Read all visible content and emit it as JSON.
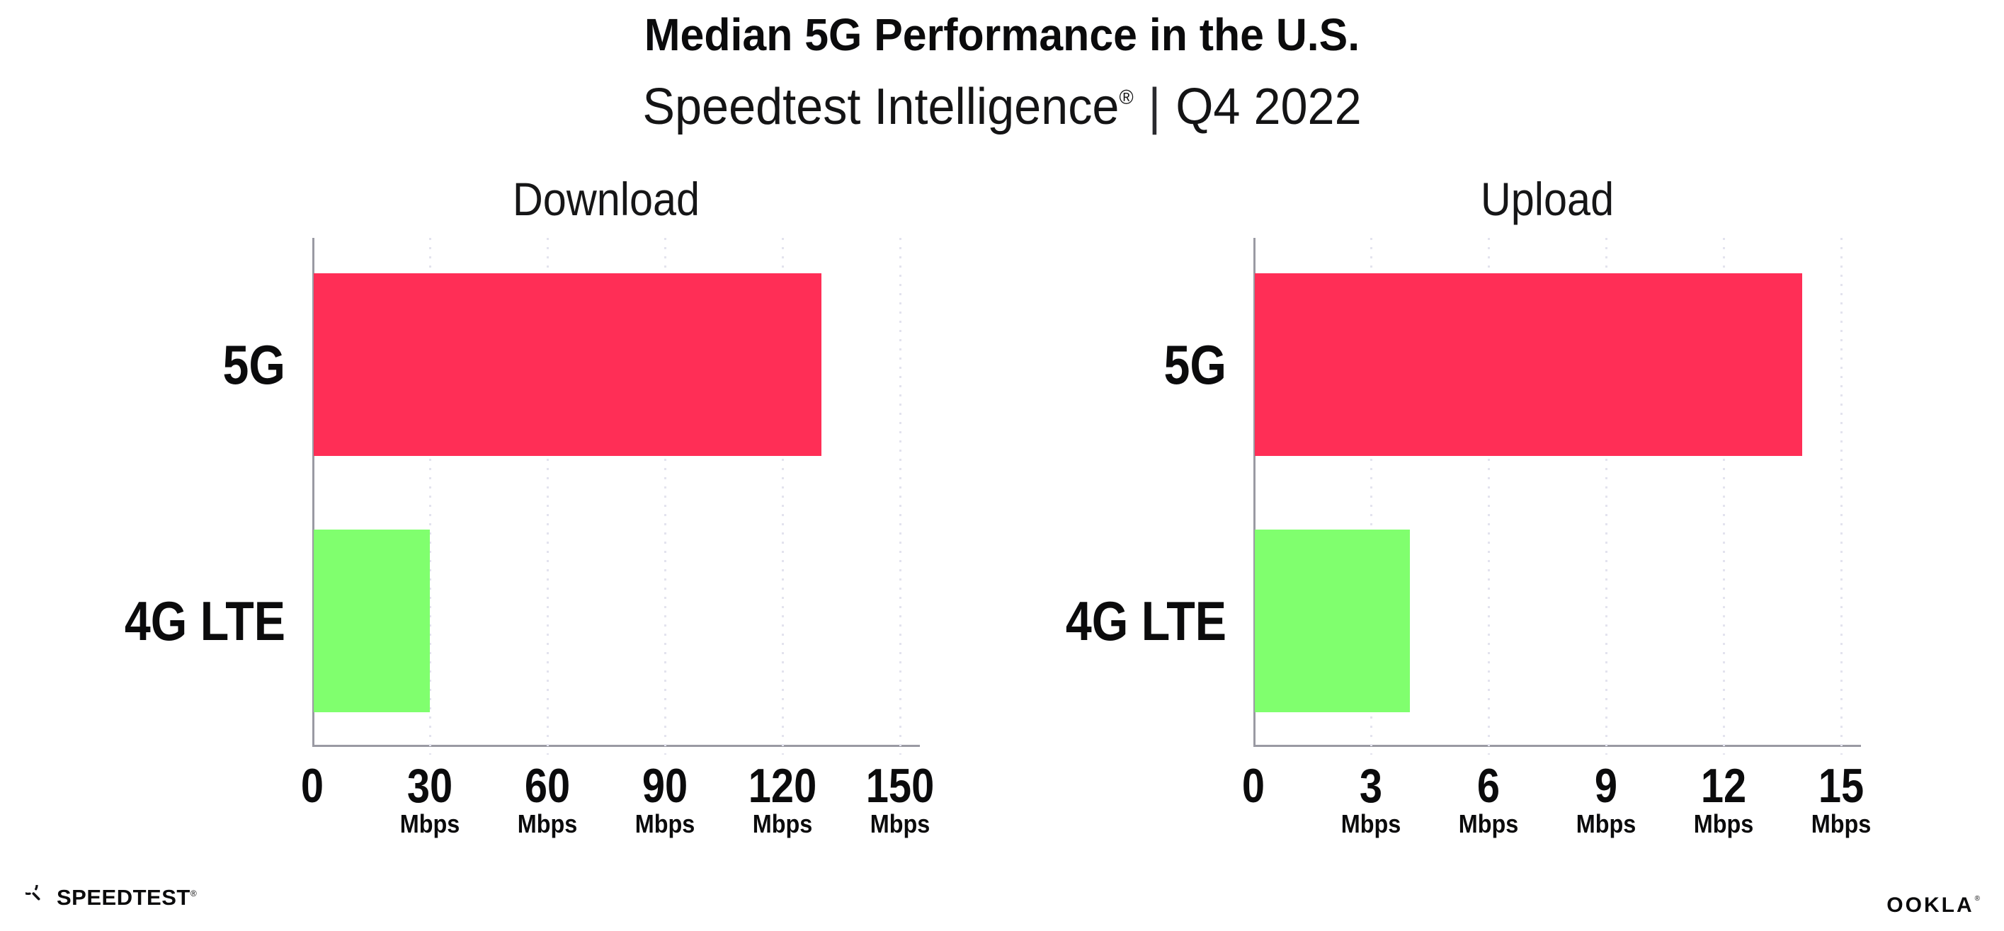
{
  "header": {
    "title": "Median 5G Performance in the U.S.",
    "subtitle": {
      "brand": "Speedtest Intelligence",
      "registered": "®",
      "separator": "|",
      "period": "Q4 2022"
    }
  },
  "colors": {
    "bar_5g_pink": "#FF2E56",
    "bar_4g_green": "#80FF6E",
    "axis_gray": "#9A9AA3",
    "gridline": "#E3E3EE",
    "text": "#0B0B0C",
    "background": "#FFFFFF"
  },
  "chart_data": [
    {
      "type": "bar",
      "orientation": "horizontal",
      "title": "Download",
      "categories": [
        "5G",
        "4G LTE"
      ],
      "values": [
        130,
        30
      ],
      "unit": "Mbps",
      "xlim": [
        0,
        150
      ],
      "xticks": [
        "0",
        "30",
        "60",
        "90",
        "120",
        "150"
      ],
      "tick_unit_label": "Mbps",
      "grid": "dotted vertical gridlines every 30 Mbps",
      "legend": "none",
      "series_colors": [
        "#FF2E56",
        "#80FF6E"
      ]
    },
    {
      "type": "bar",
      "orientation": "horizontal",
      "title": "Upload",
      "categories": [
        "5G",
        "4G LTE"
      ],
      "values": [
        14,
        4
      ],
      "unit": "Mbps",
      "xlim": [
        0,
        15
      ],
      "xticks": [
        "0",
        "3",
        "6",
        "9",
        "12",
        "15"
      ],
      "tick_unit_label": "Mbps",
      "grid": "dotted vertical gridlines every 3 Mbps",
      "legend": "none",
      "series_colors": [
        "#FF2E56",
        "#80FF6E"
      ]
    }
  ],
  "footer": {
    "speedtest": {
      "label": "SPEEDTEST",
      "registered": "®",
      "icon": "speedtest-gauge-icon"
    },
    "ookla": {
      "label": "OOKLA",
      "registered": "®"
    }
  }
}
